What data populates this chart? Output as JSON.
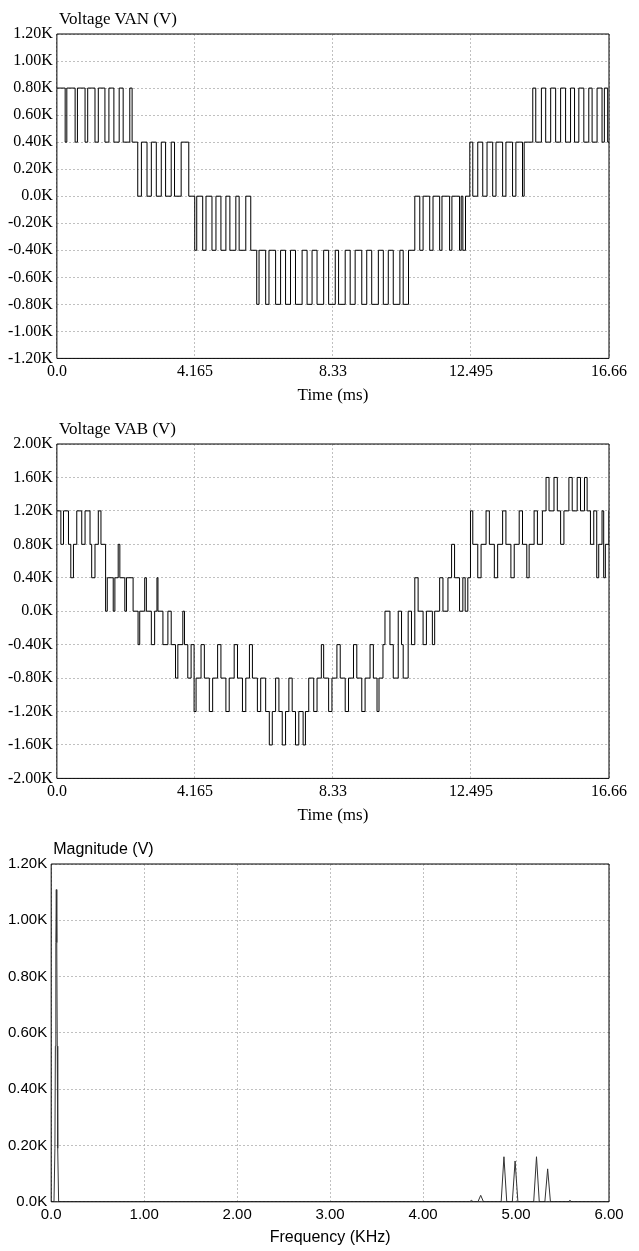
{
  "chart_data": [
    {
      "type": "step",
      "ylabel": "Voltage VAN (V)",
      "xlabel": "Time (ms)",
      "xlim": [
        0,
        16.66
      ],
      "ylim": [
        -1200,
        1200
      ],
      "xticks": [
        {
          "value": 0,
          "label": "0.0"
        },
        4.165,
        8.33,
        12.495,
        16.66
      ],
      "yticks": [
        {
          "value": -1200,
          "label": "-1.20K"
        },
        {
          "value": -1000,
          "label": "-1.00K"
        },
        {
          "value": -800,
          "label": "-0.80K"
        },
        {
          "value": -600,
          "label": "-0.60K"
        },
        {
          "value": -400,
          "label": "-0.40K"
        },
        {
          "value": -200,
          "label": "-0.20K"
        },
        {
          "value": 0,
          "label": "0.0K"
        },
        {
          "value": 200,
          "label": "0.20K"
        },
        {
          "value": 400,
          "label": "0.40K"
        },
        {
          "value": 600,
          "label": "0.60K"
        },
        {
          "value": 800,
          "label": "0.80K"
        },
        {
          "value": 1000,
          "label": "1.00K"
        },
        {
          "value": 1200,
          "label": "1.20K"
        }
      ],
      "grid": true,
      "series": [
        {
          "color": "#000000",
          "x": [
            0,
            0.25,
            0.3,
            0.55,
            0.62,
            0.85,
            0.93,
            1.15,
            1.25,
            1.45,
            1.57,
            1.72,
            1.88,
            2.0,
            2.2,
            2.27,
            2.44,
            2.55,
            2.72,
            2.85,
            3.0,
            3.15,
            3.28,
            3.45,
            3.55,
            3.75,
            3.98,
            4.16,
            4.22,
            4.4,
            4.5,
            4.68,
            4.8,
            4.95,
            5.1,
            5.22,
            5.4,
            5.5,
            5.7,
            5.85,
            6.03,
            6.1,
            6.3,
            6.4,
            6.6,
            6.75,
            6.9,
            7.05,
            7.2,
            7.4,
            7.55,
            7.7,
            7.85,
            8.05,
            8.2,
            8.4,
            8.5,
            8.7,
            8.85,
            9.0,
            9.2,
            9.35,
            9.5,
            9.7,
            9.85,
            10.0,
            10.15,
            10.35,
            10.45,
            10.61,
            10.8,
            10.95,
            11.05,
            11.25,
            11.35,
            11.55,
            11.62,
            11.85,
            11.92,
            12.15,
            12.2,
            12.25,
            12.33,
            12.46,
            12.55,
            12.7,
            12.85,
            12.98,
            13.15,
            13.25,
            13.45,
            13.55,
            13.75,
            13.85,
            14.05,
            14.1,
            14.36,
            14.45,
            14.62,
            14.75,
            14.9,
            15.05,
            15.2,
            15.35,
            15.5,
            15.62,
            15.75,
            15.9,
            16.05,
            16.15,
            16.3,
            16.45,
            16.52,
            16.62,
            16.66
          ],
          "values": [
            800,
            400,
            800,
            400,
            800,
            400,
            800,
            400,
            800,
            400,
            800,
            400,
            800,
            400,
            800,
            400,
            0,
            400,
            0,
            400,
            0,
            400,
            0,
            400,
            0,
            400,
            0,
            -400,
            0,
            -400,
            0,
            -400,
            0,
            -400,
            0,
            -400,
            0,
            -400,
            0,
            -400,
            -800,
            -400,
            -800,
            -400,
            -800,
            -400,
            -800,
            -400,
            -800,
            -400,
            -800,
            -400,
            -800,
            -400,
            -800,
            -400,
            -800,
            -400,
            -800,
            -400,
            -800,
            -400,
            -800,
            -400,
            -800,
            -400,
            -800,
            -400,
            -800,
            -400,
            0,
            -400,
            0,
            -400,
            0,
            -400,
            0,
            -400,
            0,
            -400,
            0,
            -400,
            0,
            400,
            0,
            400,
            0,
            400,
            0,
            400,
            0,
            400,
            0,
            400,
            0,
            400,
            800,
            400,
            800,
            400,
            800,
            400,
            800,
            400,
            800,
            400,
            800,
            400,
            800,
            400,
            800,
            400,
            800,
            400,
            400
          ]
        }
      ]
    },
    {
      "type": "step",
      "ylabel": "Voltage VAB (V)",
      "xlabel": "Time (ms)",
      "xlim": [
        0,
        16.66
      ],
      "ylim": [
        -2000,
        2000
      ],
      "xticks": [
        {
          "value": 0,
          "label": "0.0"
        },
        4.165,
        8.33,
        12.495,
        16.66
      ],
      "yticks": [
        {
          "value": -2000,
          "label": "-2.00K"
        },
        {
          "value": -1600,
          "label": "-1.60K"
        },
        {
          "value": -1200,
          "label": "-1.20K"
        },
        {
          "value": -800,
          "label": "-0.80K"
        },
        {
          "value": -400,
          "label": "-0.40K"
        },
        {
          "value": 0,
          "label": "0.0K"
        },
        {
          "value": 400,
          "label": "0.40K"
        },
        {
          "value": 800,
          "label": "0.80K"
        },
        {
          "value": 1200,
          "label": "1.20K"
        },
        {
          "value": 1600,
          "label": "1.60K"
        },
        {
          "value": 2000,
          "label": "2.00K"
        }
      ],
      "grid": true,
      "series": [
        {
          "color": "#000000",
          "x": [
            0,
            0.12,
            0.2,
            0.35,
            0.42,
            0.5,
            0.6,
            0.75,
            0.85,
            1.0,
            1.05,
            1.15,
            1.25,
            1.33,
            1.47,
            1.52,
            1.7,
            1.75,
            1.85,
            1.9,
            2.05,
            2.1,
            2.3,
            2.45,
            2.5,
            2.65,
            2.7,
            2.85,
            2.95,
            3.02,
            3.05,
            3.2,
            3.35,
            3.45,
            3.58,
            3.65,
            3.8,
            3.85,
            3.95,
            4.05,
            4.14,
            4.2,
            4.35,
            4.45,
            4.6,
            4.7,
            4.85,
            4.95,
            5.1,
            5.2,
            5.35,
            5.45,
            5.6,
            5.7,
            5.81,
            5.9,
            6.05,
            6.15,
            6.3,
            6.41,
            6.5,
            6.6,
            6.7,
            6.8,
            6.9,
            7.0,
            7.1,
            7.2,
            7.3,
            7.43,
            7.5,
            7.6,
            7.75,
            7.85,
            7.98,
            8.05,
            8.2,
            8.3,
            8.45,
            8.55,
            8.7,
            8.8,
            8.95,
            9.05,
            9.2,
            9.3,
            9.45,
            9.55,
            9.66,
            9.72,
            9.84,
            9.9,
            10.05,
            10.15,
            10.3,
            10.4,
            10.45,
            10.6,
            10.7,
            10.8,
            10.9,
            11.05,
            11.15,
            11.33,
            11.4,
            11.55,
            11.65,
            11.8,
            11.91,
            12.0,
            12.15,
            12.25,
            12.32,
            12.4,
            12.48,
            12.55,
            12.7,
            12.8,
            12.95,
            13.05,
            13.2,
            13.3,
            13.45,
            13.55,
            13.7,
            13.8,
            13.95,
            14.05,
            14.18,
            14.25,
            14.4,
            14.5,
            14.65,
            14.76,
            14.85,
            15.0,
            15.1,
            15.2,
            15.3,
            15.45,
            15.55,
            15.7,
            15.8,
            15.92,
            16.0,
            16.1,
            16.2,
            16.29,
            16.35,
            16.45,
            16.5,
            16.55,
            16.66
          ],
          "values": [
            1200,
            800,
            1200,
            800,
            400,
            800,
            1200,
            800,
            1200,
            800,
            400,
            800,
            1200,
            800,
            0,
            400,
            0,
            400,
            800,
            400,
            0,
            400,
            0,
            -400,
            0,
            400,
            0,
            -400,
            0,
            400,
            0,
            -400,
            0,
            -400,
            -800,
            -400,
            0,
            -400,
            -800,
            -400,
            -1200,
            -800,
            -400,
            -800,
            -1200,
            -800,
            -400,
            -800,
            -1200,
            -800,
            -400,
            -800,
            -1200,
            -800,
            -400,
            -800,
            -1200,
            -800,
            -1200,
            -1600,
            -1200,
            -800,
            -1200,
            -1600,
            -1200,
            -800,
            -1200,
            -1600,
            -1200,
            -1600,
            -1200,
            -800,
            -1200,
            -800,
            -400,
            -800,
            -1200,
            -800,
            -400,
            -800,
            -1200,
            -800,
            -400,
            -800,
            -1200,
            -800,
            -400,
            -800,
            -1200,
            -800,
            -400,
            0,
            -400,
            -800,
            0,
            -400,
            -800,
            0,
            -400,
            400,
            0,
            -400,
            0,
            -400,
            0,
            400,
            0,
            400,
            800,
            400,
            0,
            400,
            0,
            400,
            1200,
            800,
            400,
            800,
            1200,
            800,
            400,
            800,
            1200,
            800,
            400,
            800,
            1200,
            800,
            400,
            800,
            1200,
            800,
            1200,
            1600,
            1200,
            1600,
            1200,
            800,
            1200,
            1600,
            1200,
            1600,
            1200,
            1600,
            1200,
            800,
            1200,
            400,
            800,
            1200,
            400,
            800,
            1200
          ]
        }
      ]
    },
    {
      "type": "line",
      "ylabel": "Magnitude (V)",
      "xlabel": "Frequency (KHz)",
      "xlim": [
        0,
        6
      ],
      "ylim": [
        0,
        1200
      ],
      "xticks": [
        {
          "value": 0,
          "label": "0.0"
        },
        {
          "value": 1,
          "label": "1.00"
        },
        {
          "value": 2,
          "label": "2.00"
        },
        {
          "value": 3,
          "label": "3.00"
        },
        {
          "value": 4,
          "label": "4.00"
        },
        {
          "value": 5,
          "label": "5.00"
        },
        {
          "value": 6,
          "label": "6.00"
        }
      ],
      "yticks": [
        {
          "value": 0,
          "label": "0.0K"
        },
        {
          "value": 200,
          "label": "0.20K"
        },
        {
          "value": 400,
          "label": "0.40K"
        },
        {
          "value": 600,
          "label": "0.60K"
        },
        {
          "value": 800,
          "label": "0.80K"
        },
        {
          "value": 1000,
          "label": "1.00K"
        },
        {
          "value": 1200,
          "label": "1.20K"
        }
      ],
      "grid": true,
      "series": [
        {
          "color": "#333333",
          "x": [
            0,
            0.03,
            0.04,
            0.045,
            0.05,
            0.055,
            0.06,
            0.065,
            0.07,
            0.08,
            4.5,
            4.52,
            4.54,
            4.59,
            4.62,
            4.65,
            4.84,
            4.87,
            4.9,
            4.96,
            4.99,
            5.02,
            5.19,
            5.22,
            5.25,
            5.31,
            5.34,
            5.37,
            5.56,
            5.58,
            5.6,
            6
          ],
          "values": [
            0,
            0,
            190,
            553,
            921,
            1109,
            921,
            553,
            190,
            0,
            0,
            5,
            0,
            0,
            23,
            0,
            0,
            160,
            0,
            0,
            145,
            0,
            0,
            160,
            0,
            0,
            117,
            0,
            0,
            5,
            0,
            0
          ]
        }
      ]
    }
  ]
}
